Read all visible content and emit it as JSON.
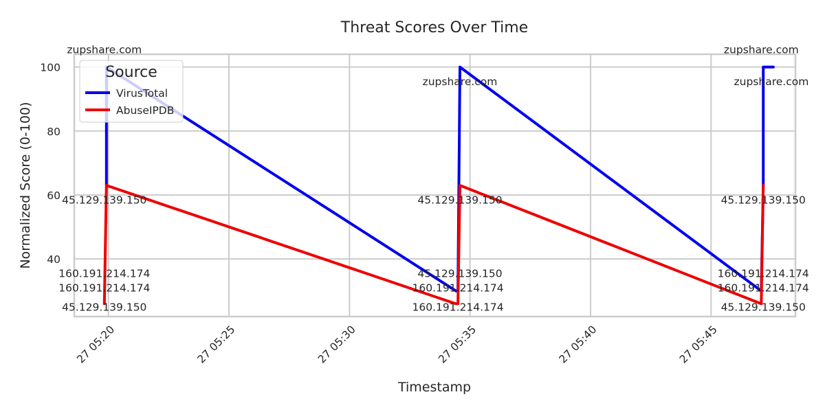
{
  "chart_data": {
    "type": "line",
    "title": "Threat Scores Over Time",
    "xlabel": "Timestamp",
    "ylabel": "Normalized Score (0-100)",
    "x_ticks": [
      "27 05:20",
      "27 05:25",
      "27 05:30",
      "27 05:35",
      "27 05:40",
      "27 05:45"
    ],
    "y_ticks": [
      40,
      60,
      80,
      100
    ],
    "xlim": [
      "05:18:35",
      "05:48:30"
    ],
    "ylim": [
      22,
      104
    ],
    "grid": true,
    "legend": {
      "title": "Source",
      "placement": "top-left"
    },
    "series": [
      {
        "name": "VirusTotal",
        "color": "#0000ee",
        "points": [
          {
            "t": "05:19:55",
            "y": 63
          },
          {
            "t": "05:19:55",
            "y": 100
          },
          {
            "t": "05:34:25",
            "y": 30
          },
          {
            "t": "05:34:30",
            "y": 30
          },
          {
            "t": "05:34:35",
            "y": 100
          },
          {
            "t": "05:47:05",
            "y": 30
          },
          {
            "t": "05:47:10",
            "y": 63
          },
          {
            "t": "05:47:10",
            "y": 100
          },
          {
            "t": "05:47:35",
            "y": 100
          }
        ]
      },
      {
        "name": "AbuseIPDB",
        "color": "#ee0000",
        "points": [
          {
            "t": "05:19:50",
            "y": 26
          },
          {
            "t": "05:19:55",
            "y": 63
          },
          {
            "t": "05:34:25",
            "y": 26
          },
          {
            "t": "05:34:30",
            "y": 26
          },
          {
            "t": "05:34:35",
            "y": 63
          },
          {
            "t": "05:47:05",
            "y": 26
          },
          {
            "t": "05:47:10",
            "y": 63
          }
        ]
      }
    ],
    "annotations": [
      {
        "text": "zupshare.com",
        "t": "05:19:50",
        "y": 105.5
      },
      {
        "text": "45.129.139.150",
        "t": "05:19:50",
        "y": 58.5
      },
      {
        "text": "160.191.214.174",
        "t": "05:19:50",
        "y": 35.5
      },
      {
        "text": "160.191.214.174",
        "t": "05:19:50",
        "y": 31
      },
      {
        "text": "45.129.139.150",
        "t": "05:19:50",
        "y": 25
      },
      {
        "text": "zupshare.com",
        "t": "05:34:35",
        "y": 95.5
      },
      {
        "text": "45.129.139.150",
        "t": "05:34:35",
        "y": 58.5
      },
      {
        "text": "45.129.139.150",
        "t": "05:34:35",
        "y": 35.5
      },
      {
        "text": "160.191.214.174",
        "t": "05:34:30",
        "y": 31
      },
      {
        "text": "160.191.214.174",
        "t": "05:34:30",
        "y": 25
      },
      {
        "text": "zupshare.com",
        "t": "05:47:05",
        "y": 105.5
      },
      {
        "text": "zupshare.com",
        "t": "05:47:30",
        "y": 95.5
      },
      {
        "text": "45.129.139.150",
        "t": "05:47:10",
        "y": 58.5
      },
      {
        "text": "160.191.214.174",
        "t": "05:47:10",
        "y": 35.5
      },
      {
        "text": "160.191.214.174",
        "t": "05:47:10",
        "y": 31
      },
      {
        "text": "45.129.139.150",
        "t": "05:47:10",
        "y": 25
      }
    ]
  }
}
